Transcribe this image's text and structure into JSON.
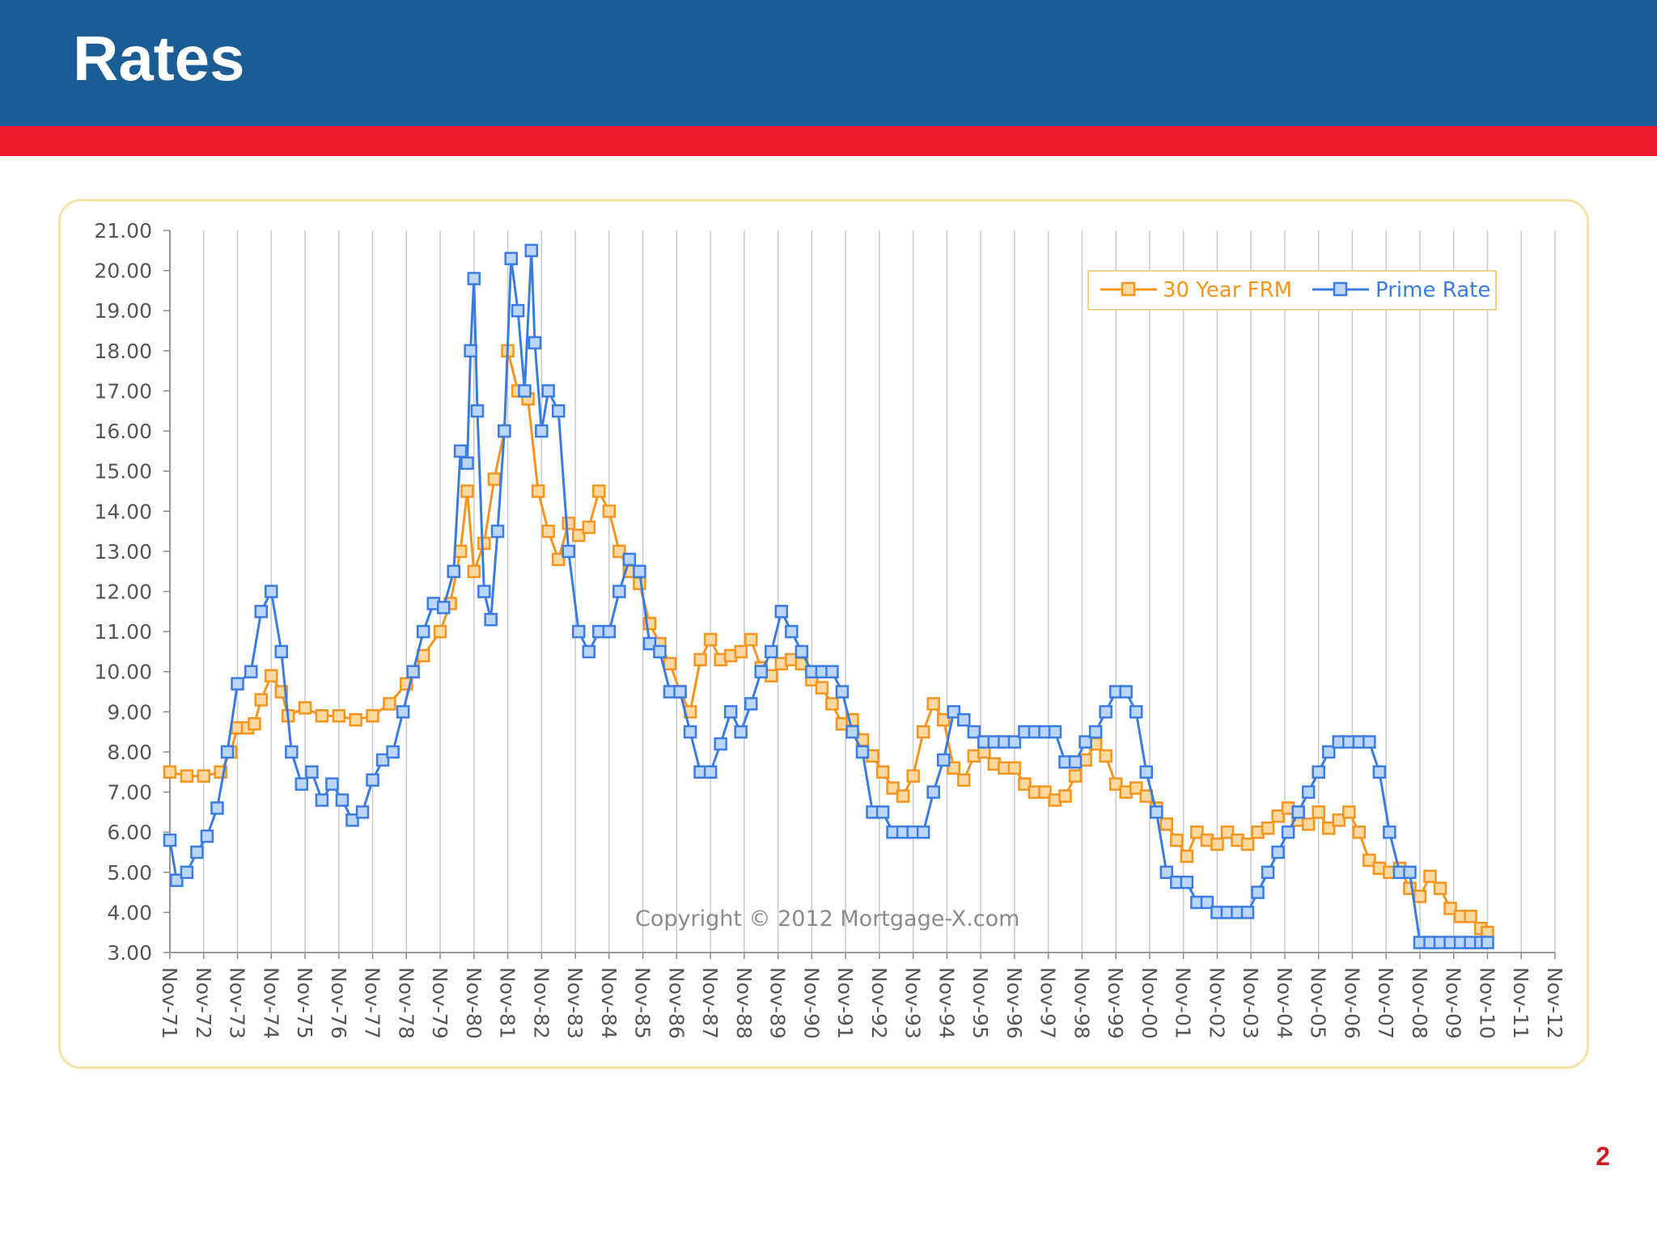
{
  "slide": {
    "title": "Rates",
    "page_number": "2",
    "colors": {
      "header": "#1a5c93",
      "accent": "#ee1c2e",
      "frame": "#f4e3a6",
      "page_number": "#d01d2a"
    }
  },
  "chart_data": {
    "type": "line",
    "title": "",
    "xlabel": "",
    "ylabel": "",
    "ylim": [
      3,
      21
    ],
    "yticks": [
      3,
      4,
      5,
      6,
      7,
      8,
      9,
      10,
      11,
      12,
      13,
      14,
      15,
      16,
      17,
      18,
      19,
      20,
      21
    ],
    "y_tick_format": "2 decimals",
    "categories": [
      "Nov-71",
      "Nov-72",
      "Nov-73",
      "Nov-74",
      "Nov-75",
      "Nov-76",
      "Nov-77",
      "Nov-78",
      "Nov-79",
      "Nov-80",
      "Nov-81",
      "Nov-82",
      "Nov-83",
      "Nov-84",
      "Nov-85",
      "Nov-86",
      "Nov-87",
      "Nov-88",
      "Nov-89",
      "Nov-90",
      "Nov-91",
      "Nov-92",
      "Nov-93",
      "Nov-94",
      "Nov-95",
      "Nov-96",
      "Nov-97",
      "Nov-98",
      "Nov-99",
      "Nov-00",
      "Nov-01",
      "Nov-02",
      "Nov-03",
      "Nov-04",
      "Nov-05",
      "Nov-06",
      "Nov-07",
      "Nov-08",
      "Nov-09",
      "Nov-10",
      "Nov-11",
      "Nov-12"
    ],
    "grid": {
      "vertical": true,
      "horizontal": false
    },
    "legend": "top-right",
    "annotation": "Copyright © 2012 Mortgage-X.com",
    "series": [
      {
        "name": "30 Year FRM",
        "color": "#f5951d",
        "marker": "square",
        "points": [
          [
            0,
            7.5
          ],
          [
            0.5,
            7.4
          ],
          [
            1.0,
            7.4
          ],
          [
            1.5,
            7.5
          ],
          [
            1.8,
            8.0
          ],
          [
            2.0,
            8.6
          ],
          [
            2.3,
            8.6
          ],
          [
            2.5,
            8.7
          ],
          [
            2.7,
            9.3
          ],
          [
            3.0,
            9.9
          ],
          [
            3.3,
            9.5
          ],
          [
            3.5,
            8.9
          ],
          [
            4.0,
            9.1
          ],
          [
            4.5,
            8.9
          ],
          [
            5.0,
            8.9
          ],
          [
            5.5,
            8.8
          ],
          [
            6.0,
            8.9
          ],
          [
            6.5,
            9.2
          ],
          [
            7.0,
            9.7
          ],
          [
            7.5,
            10.4
          ],
          [
            8.0,
            11.0
          ],
          [
            8.3,
            11.7
          ],
          [
            8.6,
            13.0
          ],
          [
            8.8,
            14.5
          ],
          [
            9.0,
            12.5
          ],
          [
            9.3,
            13.2
          ],
          [
            9.6,
            14.8
          ],
          [
            9.9,
            16.0
          ],
          [
            10.0,
            18.0
          ],
          [
            10.3,
            17.0
          ],
          [
            10.6,
            16.8
          ],
          [
            10.9,
            14.5
          ],
          [
            11.2,
            13.5
          ],
          [
            11.5,
            12.8
          ],
          [
            11.8,
            13.7
          ],
          [
            12.1,
            13.4
          ],
          [
            12.4,
            13.6
          ],
          [
            12.7,
            14.5
          ],
          [
            13.0,
            14.0
          ],
          [
            13.3,
            13.0
          ],
          [
            13.6,
            12.5
          ],
          [
            13.9,
            12.2
          ],
          [
            14.2,
            11.2
          ],
          [
            14.5,
            10.7
          ],
          [
            14.8,
            10.2
          ],
          [
            15.1,
            9.5
          ],
          [
            15.4,
            9.0
          ],
          [
            15.7,
            10.3
          ],
          [
            16.0,
            10.8
          ],
          [
            16.3,
            10.3
          ],
          [
            16.6,
            10.4
          ],
          [
            16.9,
            10.5
          ],
          [
            17.2,
            10.8
          ],
          [
            17.5,
            10.1
          ],
          [
            17.8,
            9.9
          ],
          [
            18.1,
            10.2
          ],
          [
            18.4,
            10.3
          ],
          [
            18.7,
            10.2
          ],
          [
            19.0,
            9.8
          ],
          [
            19.3,
            9.6
          ],
          [
            19.6,
            9.2
          ],
          [
            19.9,
            8.7
          ],
          [
            20.2,
            8.8
          ],
          [
            20.5,
            8.3
          ],
          [
            20.8,
            7.9
          ],
          [
            21.1,
            7.5
          ],
          [
            21.4,
            7.1
          ],
          [
            21.7,
            6.9
          ],
          [
            22.0,
            7.4
          ],
          [
            22.3,
            8.5
          ],
          [
            22.6,
            9.2
          ],
          [
            22.9,
            8.8
          ],
          [
            23.2,
            7.6
          ],
          [
            23.5,
            7.3
          ],
          [
            23.8,
            7.9
          ],
          [
            24.1,
            8.0
          ],
          [
            24.4,
            7.7
          ],
          [
            24.7,
            7.6
          ],
          [
            25.0,
            7.6
          ],
          [
            25.3,
            7.2
          ],
          [
            25.6,
            7.0
          ],
          [
            25.9,
            7.0
          ],
          [
            26.2,
            6.8
          ],
          [
            26.5,
            6.9
          ],
          [
            26.8,
            7.4
          ],
          [
            27.1,
            7.8
          ],
          [
            27.4,
            8.2
          ],
          [
            27.7,
            7.9
          ],
          [
            28.0,
            7.2
          ],
          [
            28.3,
            7.0
          ],
          [
            28.6,
            7.1
          ],
          [
            28.9,
            6.9
          ],
          [
            29.2,
            6.6
          ],
          [
            29.5,
            6.2
          ],
          [
            29.8,
            5.8
          ],
          [
            30.1,
            5.4
          ],
          [
            30.4,
            6.0
          ],
          [
            30.7,
            5.8
          ],
          [
            31.0,
            5.7
          ],
          [
            31.3,
            6.0
          ],
          [
            31.6,
            5.8
          ],
          [
            31.9,
            5.7
          ],
          [
            32.2,
            6.0
          ],
          [
            32.5,
            6.1
          ],
          [
            32.8,
            6.4
          ],
          [
            33.1,
            6.6
          ],
          [
            33.4,
            6.3
          ],
          [
            33.7,
            6.2
          ],
          [
            34.0,
            6.5
          ],
          [
            34.3,
            6.1
          ],
          [
            34.6,
            6.3
          ],
          [
            34.9,
            6.5
          ],
          [
            35.2,
            6.0
          ],
          [
            35.5,
            5.3
          ],
          [
            35.8,
            5.1
          ],
          [
            36.1,
            5.0
          ],
          [
            36.4,
            5.1
          ],
          [
            36.7,
            4.6
          ],
          [
            37.0,
            4.4
          ],
          [
            37.3,
            4.9
          ],
          [
            37.6,
            4.6
          ],
          [
            37.9,
            4.1
          ],
          [
            38.2,
            3.9
          ],
          [
            38.5,
            3.9
          ],
          [
            38.8,
            3.6
          ],
          [
            39.0,
            3.5
          ]
        ]
      },
      {
        "name": "Prime Rate",
        "color": "#3a7ce0",
        "marker": "square",
        "points": [
          [
            0,
            5.8
          ],
          [
            0.2,
            4.8
          ],
          [
            0.5,
            5.0
          ],
          [
            0.8,
            5.5
          ],
          [
            1.1,
            5.9
          ],
          [
            1.4,
            6.6
          ],
          [
            1.7,
            8.0
          ],
          [
            2.0,
            9.7
          ],
          [
            2.4,
            10.0
          ],
          [
            2.7,
            11.5
          ],
          [
            3.0,
            12.0
          ],
          [
            3.3,
            10.5
          ],
          [
            3.6,
            8.0
          ],
          [
            3.9,
            7.2
          ],
          [
            4.2,
            7.5
          ],
          [
            4.5,
            6.8
          ],
          [
            4.8,
            7.2
          ],
          [
            5.1,
            6.8
          ],
          [
            5.4,
            6.3
          ],
          [
            5.7,
            6.5
          ],
          [
            6.0,
            7.3
          ],
          [
            6.3,
            7.8
          ],
          [
            6.6,
            8.0
          ],
          [
            6.9,
            9.0
          ],
          [
            7.2,
            10.0
          ],
          [
            7.5,
            11.0
          ],
          [
            7.8,
            11.7
          ],
          [
            8.1,
            11.6
          ],
          [
            8.4,
            12.5
          ],
          [
            8.6,
            15.5
          ],
          [
            8.8,
            15.2
          ],
          [
            8.9,
            18.0
          ],
          [
            9.0,
            19.8
          ],
          [
            9.1,
            16.5
          ],
          [
            9.3,
            12.0
          ],
          [
            9.5,
            11.3
          ],
          [
            9.7,
            13.5
          ],
          [
            9.9,
            16.0
          ],
          [
            10.1,
            20.3
          ],
          [
            10.3,
            19.0
          ],
          [
            10.5,
            17.0
          ],
          [
            10.7,
            20.5
          ],
          [
            10.8,
            18.2
          ],
          [
            11.0,
            16.0
          ],
          [
            11.2,
            17.0
          ],
          [
            11.5,
            16.5
          ],
          [
            11.8,
            13.0
          ],
          [
            12.1,
            11.0
          ],
          [
            12.4,
            10.5
          ],
          [
            12.7,
            11.0
          ],
          [
            13.0,
            11.0
          ],
          [
            13.3,
            12.0
          ],
          [
            13.6,
            12.8
          ],
          [
            13.9,
            12.5
          ],
          [
            14.2,
            10.7
          ],
          [
            14.5,
            10.5
          ],
          [
            14.8,
            9.5
          ],
          [
            15.1,
            9.5
          ],
          [
            15.4,
            8.5
          ],
          [
            15.7,
            7.5
          ],
          [
            16.0,
            7.5
          ],
          [
            16.3,
            8.2
          ],
          [
            16.6,
            9.0
          ],
          [
            16.9,
            8.5
          ],
          [
            17.2,
            9.2
          ],
          [
            17.5,
            10.0
          ],
          [
            17.8,
            10.5
          ],
          [
            18.1,
            11.5
          ],
          [
            18.4,
            11.0
          ],
          [
            18.7,
            10.5
          ],
          [
            19.0,
            10.0
          ],
          [
            19.3,
            10.0
          ],
          [
            19.6,
            10.0
          ],
          [
            19.9,
            9.5
          ],
          [
            20.2,
            8.5
          ],
          [
            20.5,
            8.0
          ],
          [
            20.8,
            6.5
          ],
          [
            21.1,
            6.5
          ],
          [
            21.4,
            6.0
          ],
          [
            21.7,
            6.0
          ],
          [
            22.0,
            6.0
          ],
          [
            22.3,
            6.0
          ],
          [
            22.6,
            7.0
          ],
          [
            22.9,
            7.8
          ],
          [
            23.2,
            9.0
          ],
          [
            23.5,
            8.8
          ],
          [
            23.8,
            8.5
          ],
          [
            24.1,
            8.25
          ],
          [
            24.4,
            8.25
          ],
          [
            24.7,
            8.25
          ],
          [
            25.0,
            8.25
          ],
          [
            25.3,
            8.5
          ],
          [
            25.6,
            8.5
          ],
          [
            25.9,
            8.5
          ],
          [
            26.2,
            8.5
          ],
          [
            26.5,
            7.75
          ],
          [
            26.8,
            7.75
          ],
          [
            27.1,
            8.25
          ],
          [
            27.4,
            8.5
          ],
          [
            27.7,
            9.0
          ],
          [
            28.0,
            9.5
          ],
          [
            28.3,
            9.5
          ],
          [
            28.6,
            9.0
          ],
          [
            28.9,
            7.5
          ],
          [
            29.2,
            6.5
          ],
          [
            29.5,
            5.0
          ],
          [
            29.8,
            4.75
          ],
          [
            30.1,
            4.75
          ],
          [
            30.4,
            4.25
          ],
          [
            30.7,
            4.25
          ],
          [
            31.0,
            4.0
          ],
          [
            31.3,
            4.0
          ],
          [
            31.6,
            4.0
          ],
          [
            31.9,
            4.0
          ],
          [
            32.2,
            4.5
          ],
          [
            32.5,
            5.0
          ],
          [
            32.8,
            5.5
          ],
          [
            33.1,
            6.0
          ],
          [
            33.4,
            6.5
          ],
          [
            33.7,
            7.0
          ],
          [
            34.0,
            7.5
          ],
          [
            34.3,
            8.0
          ],
          [
            34.6,
            8.25
          ],
          [
            34.9,
            8.25
          ],
          [
            35.2,
            8.25
          ],
          [
            35.5,
            8.25
          ],
          [
            35.8,
            7.5
          ],
          [
            36.1,
            6.0
          ],
          [
            36.4,
            5.0
          ],
          [
            36.7,
            5.0
          ],
          [
            37.0,
            3.25
          ],
          [
            37.3,
            3.25
          ],
          [
            37.6,
            3.25
          ],
          [
            37.9,
            3.25
          ],
          [
            38.2,
            3.25
          ],
          [
            38.5,
            3.25
          ],
          [
            38.8,
            3.25
          ],
          [
            39.0,
            3.25
          ]
        ]
      }
    ]
  }
}
